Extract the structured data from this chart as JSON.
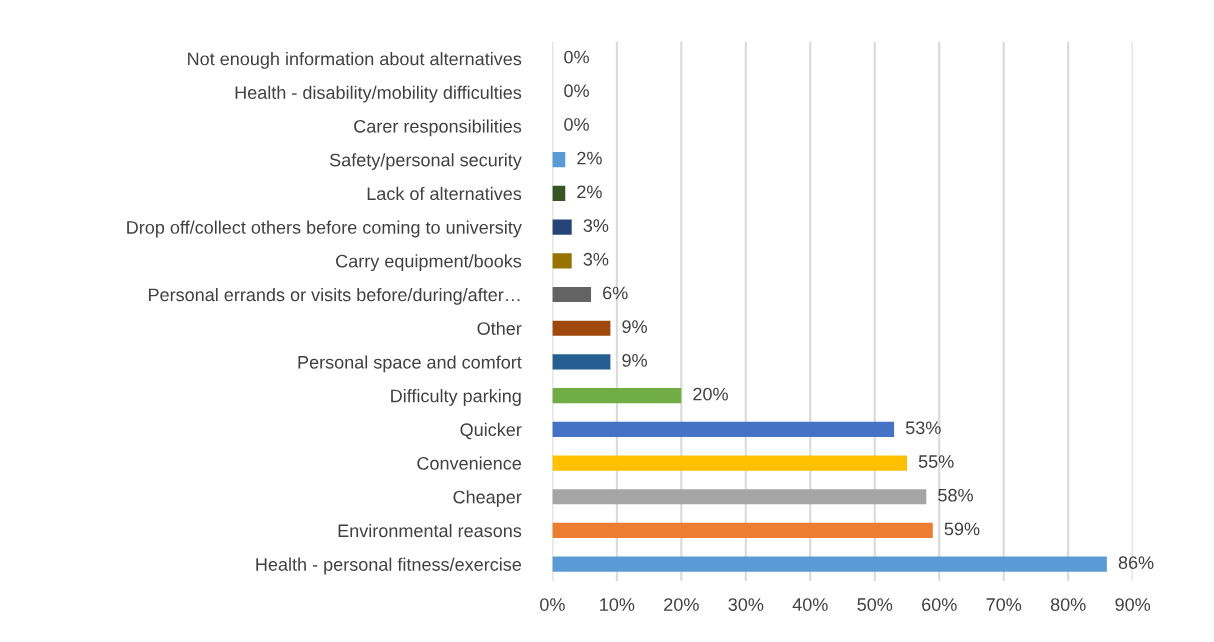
{
  "chart_data": {
    "type": "bar",
    "orientation": "horizontal",
    "categories": [
      "Not enough information about alternatives",
      "Health - disability/mobility difficulties",
      "Carer responsibilities",
      "Safety/personal security",
      "Lack of alternatives",
      "Drop off/collect others before coming to university",
      "Carry equipment/books",
      "Personal errands or visits before/during/after…",
      "Other",
      "Personal space and comfort",
      "Difficulty parking",
      "Quicker",
      "Convenience",
      "Cheaper",
      "Environmental reasons",
      "Health - personal fitness/exercise"
    ],
    "values": [
      0,
      0,
      0,
      2,
      2,
      3,
      3,
      6,
      9,
      9,
      20,
      53,
      55,
      58,
      59,
      86
    ],
    "value_labels": [
      "0%",
      "0%",
      "0%",
      "2%",
      "2%",
      "3%",
      "3%",
      "6%",
      "9%",
      "9%",
      "20%",
      "53%",
      "55%",
      "58%",
      "59%",
      "86%"
    ],
    "colors": [
      "#bf9000",
      "#7f7f7f",
      "#c55a11",
      "#5b9bd5",
      "#375623",
      "#264478",
      "#997300",
      "#636363",
      "#9e480e",
      "#255e91",
      "#70ad47",
      "#4472c4",
      "#ffc000",
      "#a5a5a5",
      "#ed7d31",
      "#5b9bd5"
    ],
    "xlim": [
      0,
      90
    ],
    "xticks": [
      {
        "value": 0,
        "label": "0%"
      },
      {
        "value": 10,
        "label": "10%"
      },
      {
        "value": 20,
        "label": "20%"
      },
      {
        "value": 30,
        "label": "30%"
      },
      {
        "value": 40,
        "label": "40%"
      },
      {
        "value": 50,
        "label": "50%"
      },
      {
        "value": 60,
        "label": "60%"
      },
      {
        "value": 70,
        "label": "70%"
      },
      {
        "value": 80,
        "label": "80%"
      },
      {
        "value": 90,
        "label": "90%"
      }
    ],
    "grid": "x"
  }
}
